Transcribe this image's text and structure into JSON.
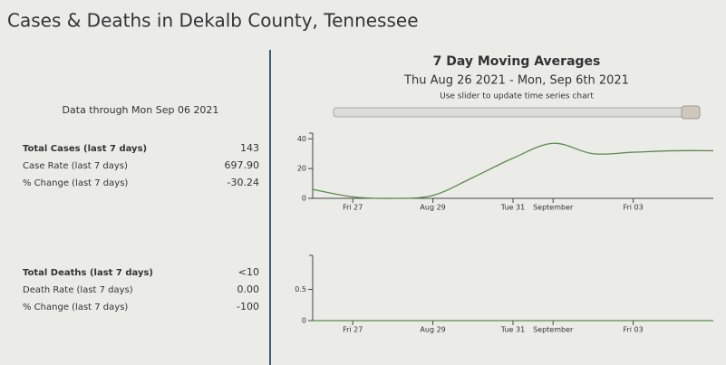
{
  "header": {
    "title": "Cases & Deaths in Dekalb County, Tennessee",
    "data_through": "Data through Mon Sep 06 2021"
  },
  "stats": {
    "cases": [
      [
        "Total Cases (last 7 days)",
        "143"
      ],
      [
        "Case Rate (last 7 days)",
        "697.90"
      ],
      [
        "% Change (last 7 days)",
        "-30.24"
      ]
    ],
    "deaths": [
      [
        "Total Deaths (last 7 days)",
        "<10"
      ],
      [
        "Death Rate (last 7 days)",
        "0.00"
      ],
      [
        "% Change (last 7 days)",
        "-100"
      ]
    ]
  },
  "panel": {
    "title": "7 Day Moving Averages",
    "subtitle": "Thu Aug 26 2021 - Mon, Sep 6th 2021",
    "hint": "Use slider to update time series chart"
  },
  "chart_data": [
    {
      "type": "line",
      "x": [
        "2021-08-26",
        "2021-08-27",
        "2021-08-28",
        "2021-08-29",
        "2021-08-30",
        "2021-08-31",
        "2021-09-01",
        "2021-09-02",
        "2021-09-03",
        "2021-09-04",
        "2021-09-05"
      ],
      "series": [
        {
          "color": "#5b8a4e",
          "values": [
            6,
            1,
            0,
            2,
            14,
            27,
            37,
            30,
            31,
            32,
            32
          ]
        }
      ],
      "xlim": [
        "2021-08-26",
        "2021-09-05"
      ],
      "xticks": [
        {
          "value": "2021-08-27",
          "label": "Fri 27"
        },
        {
          "value": "2021-08-29",
          "label": "Aug 29"
        },
        {
          "value": "2021-08-31",
          "label": "Tue 31"
        },
        {
          "value": "2021-09-01",
          "label": "September"
        },
        {
          "value": "2021-09-03",
          "label": "Fri 03"
        }
      ],
      "ylim": [
        0,
        42
      ],
      "yticks": [
        0,
        20,
        40
      ]
    },
    {
      "type": "line",
      "x": [
        "2021-08-26",
        "2021-08-27",
        "2021-08-28",
        "2021-08-29",
        "2021-08-30",
        "2021-08-31",
        "2021-09-01",
        "2021-09-02",
        "2021-09-03",
        "2021-09-04",
        "2021-09-05"
      ],
      "series": [
        {
          "color": "#5b8a4e",
          "values": [
            0,
            0,
            0,
            0,
            0,
            0,
            0,
            0,
            0,
            0,
            0
          ]
        }
      ],
      "xlim": [
        "2021-08-26",
        "2021-09-05"
      ],
      "xticks": [
        {
          "value": "2021-08-27",
          "label": "Fri 27"
        },
        {
          "value": "2021-08-29",
          "label": "Aug 29"
        },
        {
          "value": "2021-08-31",
          "label": "Tue 31"
        },
        {
          "value": "2021-09-01",
          "label": "September"
        },
        {
          "value": "2021-09-03",
          "label": "Fri 03"
        }
      ],
      "ylim": [
        0,
        1
      ],
      "yticks": [
        0,
        0.5
      ]
    }
  ]
}
